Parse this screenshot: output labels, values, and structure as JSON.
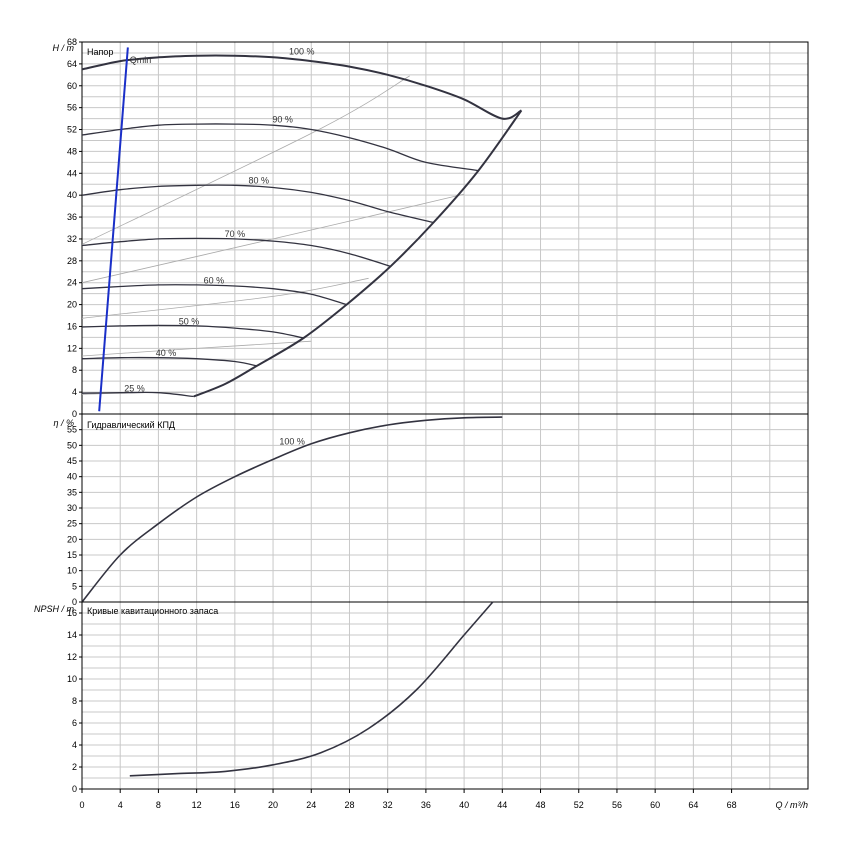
{
  "chart_data": [
    {
      "type": "line",
      "title": "Напор",
      "ylabel": "H / m",
      "xlim": [
        0,
        76
      ],
      "ylim": [
        0,
        68
      ],
      "grid": true,
      "series": [
        {
          "name": "100 %",
          "x": [
            0,
            4,
            8,
            12,
            16,
            20,
            24,
            28,
            32,
            36,
            40,
            44,
            46
          ],
          "y": [
            63,
            64.5,
            65.2,
            65.5,
            65.5,
            65.2,
            64.5,
            63.5,
            62,
            60,
            57.5,
            54,
            55.5
          ]
        },
        {
          "name": "90 %",
          "x": [
            0,
            4,
            8,
            12,
            16,
            20,
            24,
            28,
            32,
            36,
            41.5
          ],
          "y": [
            51,
            52,
            52.8,
            53,
            53,
            52.8,
            52,
            50.5,
            48.5,
            46,
            44.5
          ]
        },
        {
          "name": "80 %",
          "x": [
            0,
            4,
            8,
            12,
            16,
            20,
            24,
            28,
            32,
            36.8
          ],
          "y": [
            40,
            41,
            41.6,
            41.8,
            41.8,
            41.4,
            40.5,
            39,
            37,
            35
          ]
        },
        {
          "name": "70 %",
          "x": [
            0,
            4,
            8,
            12,
            16,
            20,
            24,
            28,
            32.3
          ],
          "y": [
            30.8,
            31.5,
            32,
            32.1,
            32,
            31.6,
            30.8,
            29.3,
            27
          ]
        },
        {
          "name": "60 %",
          "x": [
            0,
            4,
            8,
            12,
            16,
            20,
            24,
            27.7
          ],
          "y": [
            22.9,
            23.3,
            23.6,
            23.6,
            23.4,
            22.9,
            21.9,
            20
          ]
        },
        {
          "name": "50 %",
          "x": [
            0,
            4,
            8,
            12,
            16,
            20,
            23.2
          ],
          "y": [
            15.9,
            16.1,
            16.2,
            16.1,
            15.7,
            15,
            13.9
          ]
        },
        {
          "name": "40 %",
          "x": [
            0,
            4,
            8,
            12,
            16,
            18.3
          ],
          "y": [
            10.1,
            10.3,
            10.3,
            10.1,
            9.6,
            8.8
          ]
        },
        {
          "name": "25 %",
          "x": [
            0,
            4,
            8,
            11.7
          ],
          "y": [
            3.8,
            3.9,
            3.9,
            3.2
          ]
        },
        {
          "name": "Qmin",
          "x": [
            1.8,
            4.8
          ],
          "y": [
            0.5,
            67
          ]
        }
      ],
      "boundary": {
        "x": [
          11.7,
          15,
          18.3,
          23.2,
          27.7,
          32.3,
          36.8,
          41.5,
          46
        ],
        "y": [
          3.2,
          5.5,
          8.8,
          13.9,
          20,
          27,
          35,
          44.5,
          55.5
        ]
      },
      "system_curves": [
        {
          "x": [
            0,
            24.8,
            34.3
          ],
          "y": [
            31,
            52,
            61.8
          ]
        },
        {
          "x": [
            0,
            20,
            40
          ],
          "y": [
            24,
            32,
            40.2
          ]
        },
        {
          "x": [
            0,
            20,
            30
          ],
          "y": [
            17.5,
            21.5,
            24.8
          ]
        },
        {
          "x": [
            0,
            12,
            24
          ],
          "y": [
            10.6,
            12,
            13.3
          ]
        },
        {
          "x": [
            0,
            6,
            12
          ],
          "y": [
            3.6,
            3.9,
            4
          ]
        }
      ]
    },
    {
      "type": "line",
      "title": "Гидравлический КПД",
      "ylabel": "η / %",
      "xlim": [
        0,
        76
      ],
      "ylim": [
        0,
        60
      ],
      "grid": true,
      "series": [
        {
          "name": "100 %",
          "x": [
            0,
            4,
            8,
            12,
            16,
            20,
            24,
            28,
            32,
            36,
            40,
            44
          ],
          "y": [
            0,
            15,
            25,
            33.5,
            40,
            45.5,
            50.5,
            54,
            56.5,
            58,
            58.8,
            59
          ]
        }
      ]
    },
    {
      "type": "line",
      "title": "Кривые кавитационного запаса",
      "ylabel": "NPSH / m",
      "xlabel": "Q / m³/h",
      "xlim": [
        0,
        76
      ],
      "ylim": [
        0,
        17
      ],
      "grid": true,
      "series": [
        {
          "name": "",
          "x": [
            5,
            10,
            15,
            20,
            25,
            30,
            35,
            40,
            43
          ],
          "y": [
            1.2,
            1.4,
            1.6,
            2.2,
            3.3,
            5.5,
            9,
            14,
            17
          ]
        }
      ]
    }
  ],
  "axes": {
    "x_ticks": [
      "0",
      "4",
      "8",
      "12",
      "16",
      "20",
      "24",
      "28",
      "32",
      "36",
      "40",
      "44",
      "48",
      "52",
      "56",
      "60",
      "64",
      "68"
    ],
    "x_label": "Q / m³/h",
    "h_ticks": [
      "0",
      "4",
      "8",
      "12",
      "16",
      "20",
      "24",
      "28",
      "32",
      "36",
      "40",
      "44",
      "48",
      "52",
      "56",
      "60",
      "64",
      "68"
    ],
    "h_label": "H / m",
    "eta_ticks": [
      "0",
      "5",
      "10",
      "15",
      "20",
      "25",
      "30",
      "35",
      "40",
      "45",
      "50",
      "55"
    ],
    "eta_label": "η / %",
    "npsh_ticks": [
      "0",
      "2",
      "4",
      "6",
      "8",
      "10",
      "12",
      "14",
      "16"
    ],
    "npsh_label": "NPSH / m"
  },
  "labels": {
    "qmin": "Qmin",
    "head_curves": [
      "100 %",
      "90 %",
      "80 %",
      "70 %",
      "60 %",
      "50 %",
      "40 %",
      "25 %"
    ],
    "eff_curve": "100 %"
  },
  "colors": {
    "curve": "#333340",
    "qmin": "#1a2fc8",
    "system": "#aaaaaa",
    "grid": "#c8c8c8"
  }
}
